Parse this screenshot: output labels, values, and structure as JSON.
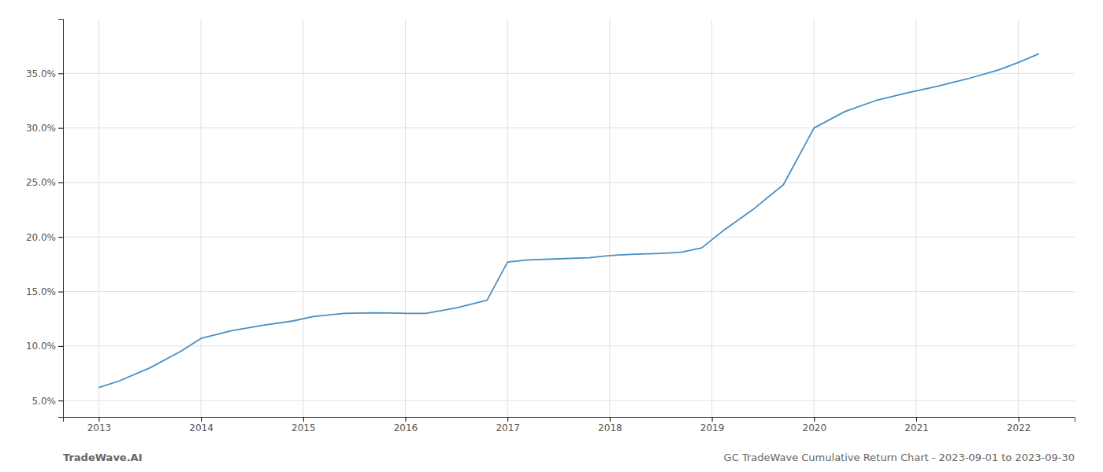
{
  "chart_data": {
    "type": "line",
    "x": [
      2013.0,
      2013.2,
      2013.5,
      2013.8,
      2014.0,
      2014.3,
      2014.6,
      2014.9,
      2015.1,
      2015.4,
      2015.7,
      2016.0,
      2016.2,
      2016.5,
      2016.8,
      2017.0,
      2017.2,
      2017.5,
      2017.8,
      2018.0,
      2018.2,
      2018.5,
      2018.7,
      2018.9,
      2019.1,
      2019.4,
      2019.7,
      2020.0,
      2020.3,
      2020.6,
      2020.9,
      2021.2,
      2021.5,
      2021.8,
      2022.0,
      2022.2
    ],
    "values": [
      6.2,
      6.8,
      8.0,
      9.5,
      10.7,
      11.4,
      11.9,
      12.3,
      12.7,
      13.0,
      13.05,
      13.0,
      13.0,
      13.5,
      14.2,
      17.7,
      17.9,
      18.0,
      18.1,
      18.3,
      18.4,
      18.5,
      18.6,
      19.0,
      20.5,
      22.5,
      24.8,
      30.0,
      31.5,
      32.5,
      33.2,
      33.8,
      34.5,
      35.3,
      36.0,
      36.8
    ],
    "color": "#4a90c4",
    "xlim": [
      2012.65,
      2022.55
    ],
    "ylim": [
      3.5,
      40.0
    ],
    "xticks": [
      2013,
      2014,
      2015,
      2016,
      2017,
      2018,
      2019,
      2020,
      2021,
      2022
    ],
    "yticks": [
      {
        "value": 5.0,
        "label": "5.0%"
      },
      {
        "value": 10.0,
        "label": "10.0%"
      },
      {
        "value": 15.0,
        "label": "15.0%"
      },
      {
        "value": 20.0,
        "label": "20.0%"
      },
      {
        "value": 25.0,
        "label": "25.0%"
      },
      {
        "value": 30.0,
        "label": "30.0%"
      },
      {
        "value": 35.0,
        "label": "35.0%"
      }
    ],
    "grid": true,
    "annotations": [
      "TradeWave.AI",
      "GC TradeWave Cumulative Return Chart - 2023-09-01 to 2023-09-30"
    ]
  }
}
